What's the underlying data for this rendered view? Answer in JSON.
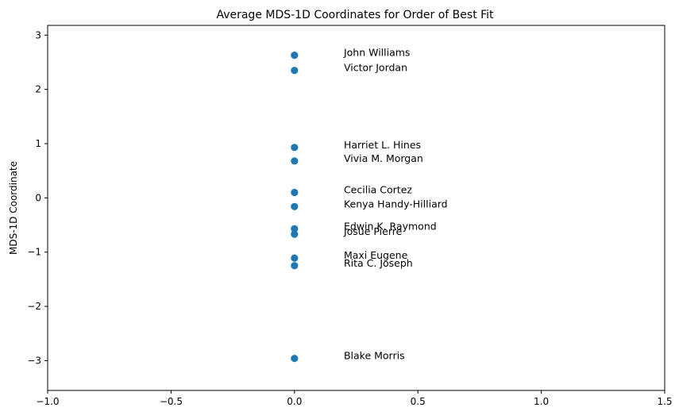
{
  "chart_data": {
    "type": "scatter",
    "title": "Average MDS-1D Coordinates for Order of Best Fit",
    "xlabel": "",
    "ylabel": "MDS-1D Coordinate",
    "xlim": [
      -1.0,
      1.5
    ],
    "ylim": [
      -3.55,
      3.18
    ],
    "x_ticks": [
      -1.0,
      -0.5,
      0.0,
      0.5,
      1.0,
      1.5
    ],
    "x_tick_labels": [
      "−1.0",
      "−0.5",
      "0.0",
      "0.5",
      "1.0",
      "1.5"
    ],
    "y_ticks": [
      -3,
      -2,
      -1,
      0,
      1,
      2,
      3
    ],
    "y_tick_labels": [
      "−3",
      "−2",
      "−1",
      "0",
      "1",
      "2",
      "3"
    ],
    "grid": false,
    "marker_color": "#1f77b4",
    "points": [
      {
        "label": "John Williams",
        "x": 0.0,
        "y": 2.63
      },
      {
        "label": "Victor Jordan",
        "x": 0.0,
        "y": 2.35
      },
      {
        "label": "Harriet L. Hines",
        "x": 0.0,
        "y": 0.93
      },
      {
        "label": "Vivia M. Morgan",
        "x": 0.0,
        "y": 0.68
      },
      {
        "label": "Cecilia Cortez",
        "x": 0.0,
        "y": 0.1
      },
      {
        "label": "Kenya Handy-Hilliard",
        "x": 0.0,
        "y": -0.16
      },
      {
        "label": "Edwin K. Raymond",
        "x": 0.0,
        "y": -0.57
      },
      {
        "label": "Josue Pierre",
        "x": 0.0,
        "y": -0.67
      },
      {
        "label": "Maxi Eugene",
        "x": 0.0,
        "y": -1.11
      },
      {
        "label": "Rita C. Joseph",
        "x": 0.0,
        "y": -1.25
      },
      {
        "label": "Blake Morris",
        "x": 0.0,
        "y": -2.96
      }
    ]
  }
}
